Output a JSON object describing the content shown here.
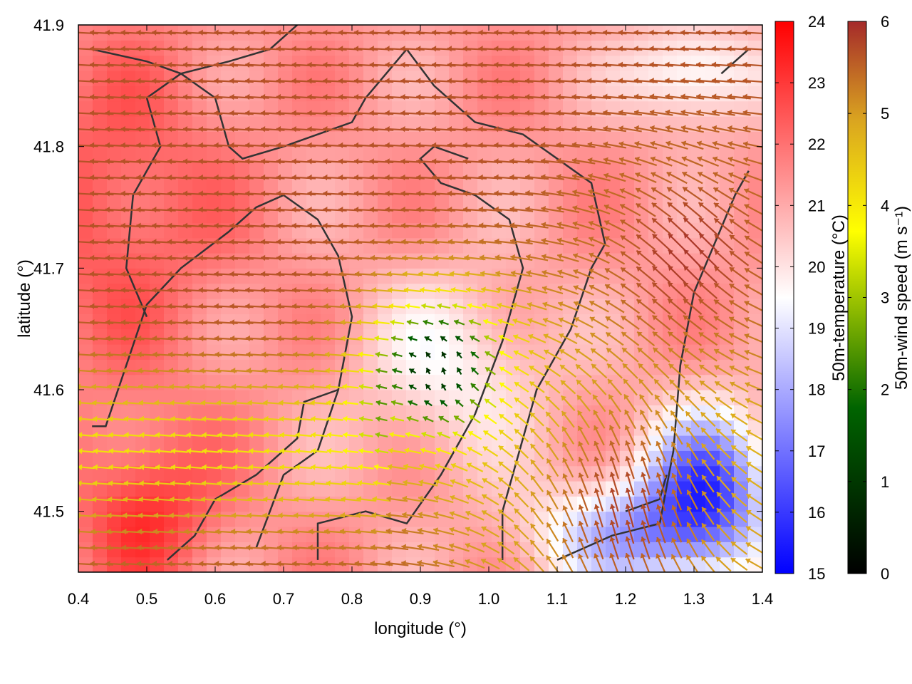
{
  "chart_data": {
    "type": "heatmap",
    "xlabel": "longitude (°)",
    "ylabel": "latitude (°)",
    "xlim": [
      0.4,
      1.4
    ],
    "ylim": [
      41.45,
      41.9
    ],
    "x_ticks": [
      "0.4",
      "0.5",
      "0.6",
      "0.7",
      "0.8",
      "0.9",
      "1.0",
      "1.1",
      "1.2",
      "1.3",
      "1.4"
    ],
    "y_ticks": [
      "41.5",
      "41.6",
      "41.7",
      "41.8",
      "41.9"
    ],
    "grid": false,
    "temperature_colorbar": {
      "label": "50m-temperature (°C)",
      "range": [
        15,
        24
      ],
      "ticks": [
        "15",
        "16",
        "17",
        "18",
        "19",
        "20",
        "21",
        "22",
        "23",
        "24"
      ],
      "colors": [
        "#0000ff",
        "#ffffff",
        "#ff0000"
      ]
    },
    "wind_colorbar": {
      "label": "50m-wind speed (m s⁻¹)",
      "range": [
        0,
        6
      ],
      "ticks": [
        "0",
        "1",
        "2",
        "3",
        "4",
        "5",
        "6"
      ],
      "colors": [
        "#000000",
        "#006400",
        "#ffff00",
        "#daa520",
        "#a52a2a"
      ]
    },
    "fields": {
      "temperature": "50m-temperature",
      "wind": "50m-wind speed vectors"
    },
    "coastline_color": "#333333"
  }
}
